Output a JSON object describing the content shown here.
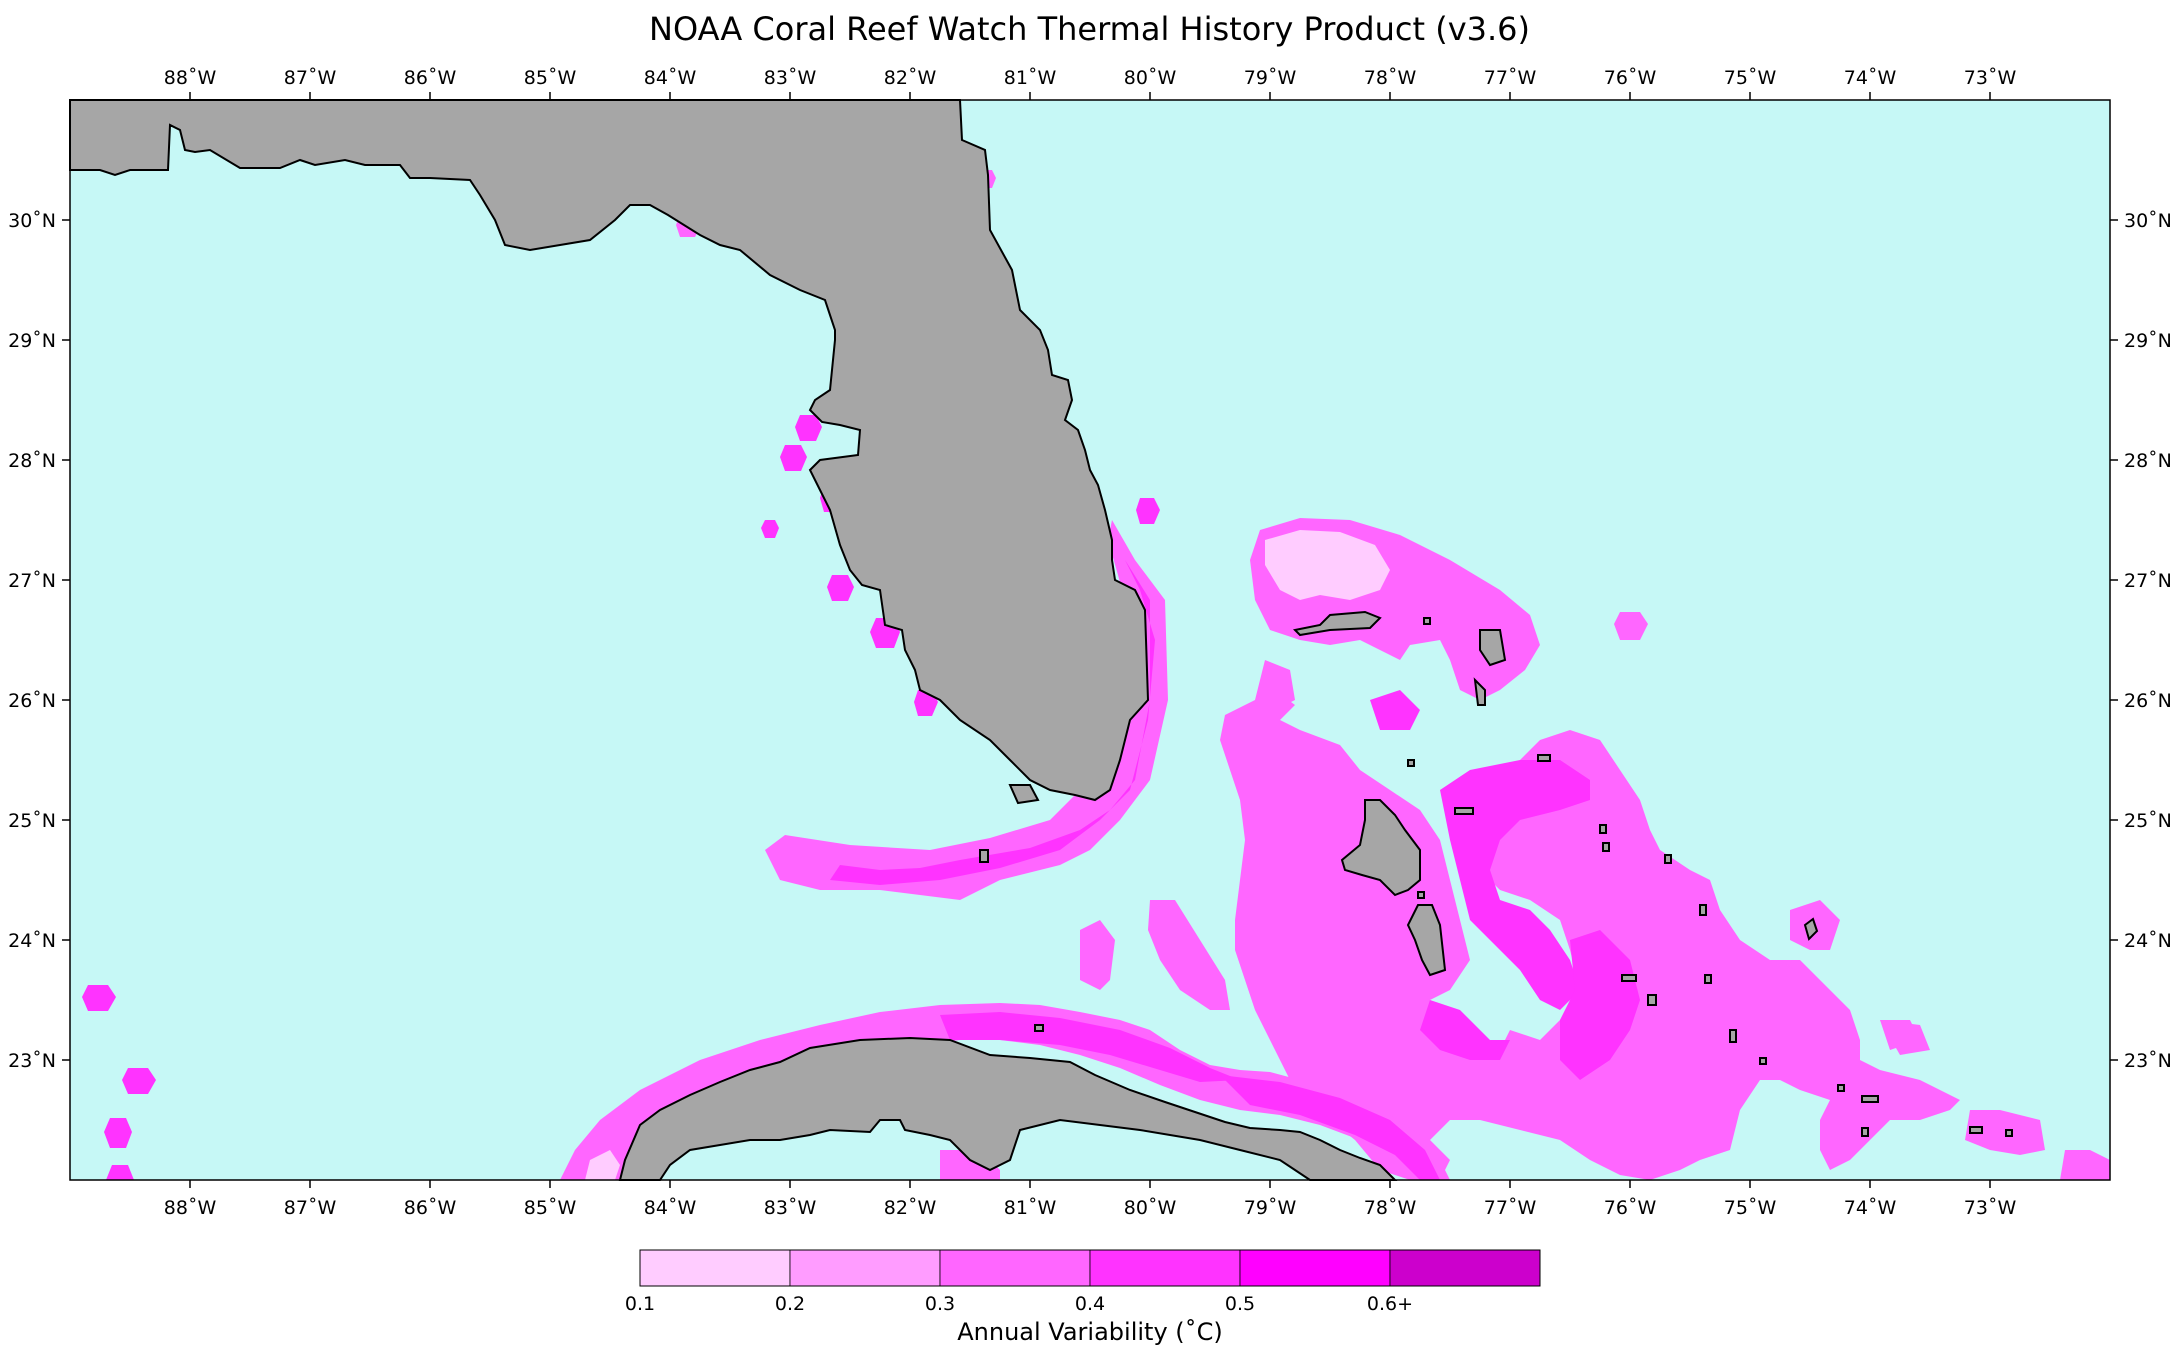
{
  "title": "NOAA Coral Reef Watch Thermal History Product (v3.6)",
  "map": {
    "lon_range": [
      -89.0,
      -72.0
    ],
    "lat_range": [
      22.0,
      31.0
    ],
    "lon_ticks": [
      {
        "value": -88,
        "label": "88˚W"
      },
      {
        "value": -87,
        "label": "87˚W"
      },
      {
        "value": -86,
        "label": "86˚W"
      },
      {
        "value": -85,
        "label": "85˚W"
      },
      {
        "value": -84,
        "label": "84˚W"
      },
      {
        "value": -83,
        "label": "83˚W"
      },
      {
        "value": -82,
        "label": "82˚W"
      },
      {
        "value": -81,
        "label": "81˚W"
      },
      {
        "value": -80,
        "label": "80˚W"
      },
      {
        "value": -79,
        "label": "79˚W"
      },
      {
        "value": -78,
        "label": "78˚W"
      },
      {
        "value": -77,
        "label": "77˚W"
      },
      {
        "value": -76,
        "label": "76˚W"
      },
      {
        "value": -75,
        "label": "75˚W"
      },
      {
        "value": -74,
        "label": "74˚W"
      },
      {
        "value": -73,
        "label": "73˚W"
      }
    ],
    "lat_ticks": [
      {
        "value": 30,
        "label": "30˚N"
      },
      {
        "value": 29,
        "label": "29˚N"
      },
      {
        "value": 28,
        "label": "28˚N"
      },
      {
        "value": 27,
        "label": "27˚N"
      },
      {
        "value": 26,
        "label": "26˚N"
      },
      {
        "value": 25,
        "label": "25˚N"
      },
      {
        "value": 24,
        "label": "24˚N"
      },
      {
        "value": 23,
        "label": "23˚N"
      }
    ],
    "ocean_color": "#c6f8f6",
    "land_color": "#a6a6a6",
    "coast_color": "#000000"
  },
  "colorbar": {
    "title": "Annual Variability (˚C)",
    "tick_labels": [
      "0.1",
      "0.2",
      "0.3",
      "0.4",
      "0.5",
      "0.6+"
    ],
    "colors": [
      "#ffccff",
      "#ff9cff",
      "#ff66ff",
      "#ff33ff",
      "#ff00ff",
      "#cc00cc"
    ]
  }
}
